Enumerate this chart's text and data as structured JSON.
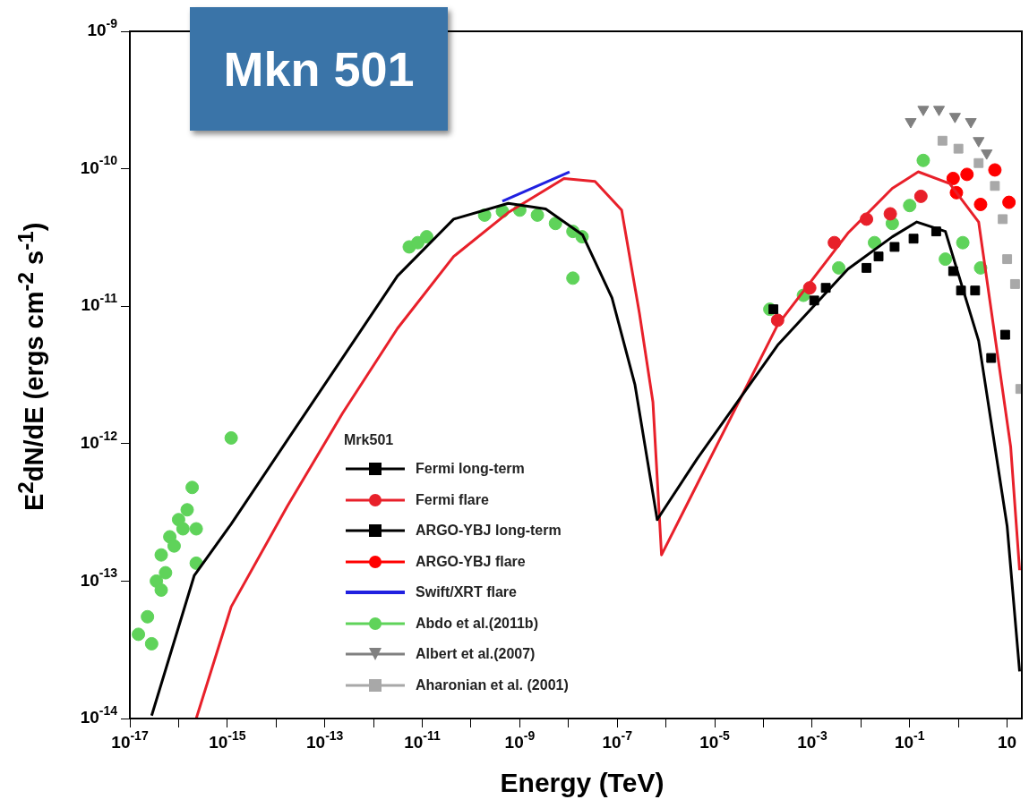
{
  "chart_data": {
    "type": "scatter",
    "title": "Mkn 501",
    "xlabel": "Energy (TeV)",
    "ylabel": "E$^{2}$dN/dE (ergs cm$^{-2}$ s$^{-1}$)",
    "legend_title": "Mrk501",
    "legend": "bottom",
    "log": "xy",
    "grid": false,
    "xlim": [
      1e-17,
      20
    ],
    "ylim": [
      1e-14,
      1e-09
    ],
    "xticks": [
      {
        "value": 1e-17,
        "label": "10$^{-17}$"
      },
      {
        "value": 1e-16,
        "label": null
      },
      {
        "value": 1e-15,
        "label": "10$^{-15}$"
      },
      {
        "value": 1e-14,
        "label": null
      },
      {
        "value": 1e-13,
        "label": "10$^{-13}$"
      },
      {
        "value": 1e-12,
        "label": null
      },
      {
        "value": 1e-11,
        "label": "10$^{-11}$"
      },
      {
        "value": 1e-10,
        "label": null
      },
      {
        "value": 1e-09,
        "label": "10$^{-9}$"
      },
      {
        "value": 1e-08,
        "label": null
      },
      {
        "value": 1e-07,
        "label": "10$^{-7}$"
      },
      {
        "value": 1e-06,
        "label": null
      },
      {
        "value": 1e-05,
        "label": "10$^{-5}$"
      },
      {
        "value": 0.0001,
        "label": null
      },
      {
        "value": 0.001,
        "label": "10$^{-3}$"
      },
      {
        "value": 0.01,
        "label": null
      },
      {
        "value": 0.1,
        "label": "10$^{-1}$"
      },
      {
        "value": 1,
        "label": null
      },
      10
    ],
    "yticks": [
      {
        "value": 1e-14,
        "label": "10$^{-14}$"
      },
      {
        "value": 1e-13,
        "label": "10$^{-13}$"
      },
      {
        "value": 1e-12,
        "label": "10$^{-12}$"
      },
      {
        "value": 1e-11,
        "label": "10$^{-11}$"
      },
      {
        "value": 1e-10,
        "label": "10$^{-10}$"
      },
      {
        "value": 1e-09,
        "label": "10$^{-9}$"
      }
    ],
    "series": [
      {
        "type": "line",
        "marker": "none",
        "line_style": "solid",
        "color": "#000000",
        "x": [
          2.8e-17,
          2.1e-16,
          1.2e-15,
          1.7e-14,
          2.3e-13,
          3.1e-12,
          4.4e-11,
          5.8e-10,
          3.4e-09,
          1.95e-08,
          7.8e-08,
          2.3e-07,
          6.6e-07,
          4.4e-06,
          0.000195,
          0.0054,
          0.044,
          0.14,
          0.54,
          2.6,
          10,
          18
        ],
        "values": [
          1.05e-14,
          1.1e-13,
          2.6e-13,
          1.06e-12,
          4.2e-12,
          1.66e-11,
          4.3e-11,
          5.6e-11,
          5.1e-11,
          3.3e-11,
          1.15e-11,
          2.7e-12,
          2.8e-13,
          7.8e-13,
          5.2e-12,
          1.86e-11,
          3.2e-11,
          4.1e-11,
          3.5e-11,
          5.6e-12,
          2.5e-13,
          2.2e-14
        ]
      },
      {
        "type": "line",
        "marker": "none",
        "line_style": "solid",
        "color": "#e8202a",
        "x": [
          2.3e-16,
          1.2e-15,
          1.7e-14,
          2.3e-13,
          3.1e-12,
          4.4e-11,
          5.8e-10,
          8.1e-09,
          3.5e-08,
          1.23e-07,
          2.85e-07,
          5.4e-07,
          8.1e-07,
          4.4e-06,
          0.000195,
          0.0054,
          0.044,
          0.15,
          0.66,
          2.6,
          11.8,
          18
        ],
        "values": [
          1e-14,
          6.5e-14,
          3.5e-13,
          1.66e-12,
          6.9e-12,
          2.3e-11,
          4.8e-11,
          8.5e-11,
          8.1e-11,
          5e-11,
          8.9e-12,
          2e-12,
          1.55e-13,
          5.1e-13,
          7.3e-12,
          3.4e-11,
          7.2e-11,
          9.5e-11,
          7.8e-11,
          4.1e-11,
          9.5e-13,
          1.2e-13
        ]
      },
      {
        "name": "Fermi long-term",
        "type": "scatter",
        "marker": "square",
        "color": "#000000",
        "x": [
          0.00016,
          0.0011,
          0.0019,
          0.013,
          0.023,
          0.049,
          0.12
        ],
        "values": [
          9.5e-12,
          1.1e-11,
          1.36e-11,
          1.9e-11,
          2.3e-11,
          2.7e-11,
          3.1e-11
        ]
      },
      {
        "name": "Fermi flare",
        "type": "scatter",
        "marker": "circle",
        "color": "#e8202a",
        "x": [
          0.000195,
          0.00089,
          0.00285,
          0.013,
          0.04,
          0.17
        ],
        "values": [
          7.9e-12,
          1.36e-11,
          2.9e-11,
          4.3e-11,
          4.7e-11,
          6.3e-11
        ]
      },
      {
        "name": "ARGO-YBJ long-term",
        "type": "scatter",
        "marker": "square",
        "color": "#000000",
        "x": [
          0.35,
          0.78,
          1.13,
          2.2,
          4.7,
          9.1
        ],
        "values": [
          3.5e-11,
          1.8e-11,
          1.3e-11,
          1.3e-11,
          4.2e-12,
          6.2e-12
        ]
      },
      {
        "name": "ARGO-YBJ flare",
        "type": "scatter",
        "marker": "circle",
        "color": "#ff0000",
        "x": [
          0.78,
          0.91,
          1.5,
          2.85,
          5.6,
          10.9
        ],
        "values": [
          8.5e-11,
          6.7e-11,
          9.1e-11,
          5.5e-11,
          9.8e-11,
          5.7e-11
        ]
      },
      {
        "name": "Swift/XRT flare",
        "type": "line",
        "marker": "none",
        "line_style": "solid",
        "color": "#2020e0",
        "x": [
          4.4e-10,
          1.05e-08
        ],
        "values": [
          5.8e-11,
          9.5e-11
        ]
      },
      {
        "name": "Abdo et al.(2011b)",
        "type": "scatter",
        "marker": "circle",
        "color": "#5fd35a",
        "x": [
          1.5e-17,
          2.3e-17,
          2.8e-17,
          3.5e-17,
          4.4e-17,
          4.4e-17,
          5.4e-17,
          6.6e-17,
          8.1e-17,
          1e-16,
          1.23e-16,
          1.5e-16,
          1.9e-16,
          2.3e-16,
          2.3e-16,
          1.2e-15,
          5.4e-12,
          8.1e-12,
          1.23e-11,
          1.9e-10,
          4.4e-10,
          1e-09,
          2.3e-09,
          5.4e-09,
          1.23e-08,
          1.9e-08,
          1.23e-08,
          0.000135,
          0.00066,
          0.0035,
          0.019,
          0.044,
          0.1,
          0.19,
          0.54,
          1.23,
          2.85
        ],
        "values": [
          4.1e-14,
          5.5e-14,
          3.5e-14,
          1e-13,
          8.6e-14,
          1.55e-13,
          1.15e-13,
          2.1e-13,
          1.8e-13,
          2.8e-13,
          2.4e-13,
          3.3e-13,
          4.8e-13,
          2.4e-13,
          1.35e-13,
          1.1e-12,
          2.7e-11,
          2.9e-11,
          3.2e-11,
          4.6e-11,
          4.9e-11,
          5e-11,
          4.6e-11,
          4e-11,
          3.5e-11,
          3.2e-11,
          1.6e-11,
          9.5e-12,
          1.2e-11,
          1.9e-11,
          2.9e-11,
          4e-11,
          5.4e-11,
          1.15e-10,
          2.2e-11,
          2.9e-11,
          1.9e-11
        ]
      },
      {
        "name": "Albert et al.(2007)",
        "type": "scatter",
        "marker": "triangle",
        "color": "#808080",
        "x": [
          0.105,
          0.19,
          0.4,
          0.85,
          1.8,
          2.6,
          3.8
        ],
        "values": [
          2.2e-10,
          2.7e-10,
          2.7e-10,
          2.4e-10,
          2.2e-10,
          1.6e-10,
          1.3e-10
        ]
      },
      {
        "name": "Aharonian et al. (2001)",
        "type": "scatter",
        "marker": "square",
        "color": "#a8a8a8",
        "x": [
          0.47,
          1.0,
          2.6,
          5.6,
          8.1,
          10,
          14.5,
          18.6
        ],
        "values": [
          1.6e-10,
          1.4e-10,
          1.1e-10,
          7.5e-11,
          4.3e-11,
          2.2e-11,
          1.45e-11,
          2.5e-12
        ]
      }
    ]
  }
}
